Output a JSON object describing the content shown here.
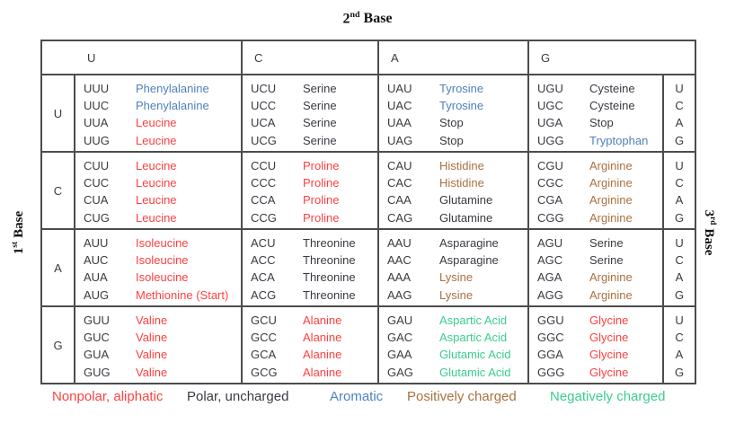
{
  "title": {
    "number": "2",
    "sup": "nd",
    "word": "Base"
  },
  "axis_labels": {
    "first_base": {
      "number": "1",
      "sup": "st",
      "word": "Base"
    },
    "third_base": {
      "number": "3",
      "sup": "rd",
      "word": "Base"
    }
  },
  "colors": {
    "nonpolar": "#ff4040",
    "polar": "#3a3a42",
    "aromatic": "#4f81bd",
    "positive": "#a9713f",
    "negative": "#3bcd8e",
    "border": "#4c4c4c"
  },
  "table": {
    "column_headers": [
      "U",
      "C",
      "A",
      "G"
    ],
    "rows": [
      {
        "label": "U",
        "third_base": [
          "U",
          "C",
          "A",
          "G"
        ],
        "cells": [
          [
            {
              "codon": "UUU",
              "acid": "Phenylalanine",
              "category": "aromatic"
            },
            {
              "codon": "UUC",
              "acid": "Phenylalanine",
              "category": "aromatic"
            },
            {
              "codon": "UUA",
              "acid": "Leucine",
              "category": "nonpolar"
            },
            {
              "codon": "UUG",
              "acid": "Leucine",
              "category": "nonpolar"
            }
          ],
          [
            {
              "codon": "UCU",
              "acid": "Serine",
              "category": "polar"
            },
            {
              "codon": "UCC",
              "acid": "Serine",
              "category": "polar"
            },
            {
              "codon": "UCA",
              "acid": "Serine",
              "category": "polar"
            },
            {
              "codon": "UCG",
              "acid": "Serine",
              "category": "polar"
            }
          ],
          [
            {
              "codon": "UAU",
              "acid": "Tyrosine",
              "category": "aromatic"
            },
            {
              "codon": "UAC",
              "acid": "Tyrosine",
              "category": "aromatic"
            },
            {
              "codon": "UAA",
              "acid": "Stop",
              "category": "polar"
            },
            {
              "codon": "UAG",
              "acid": "Stop",
              "category": "polar"
            }
          ],
          [
            {
              "codon": "UGU",
              "acid": "Cysteine",
              "category": "polar"
            },
            {
              "codon": "UGC",
              "acid": "Cysteine",
              "category": "polar"
            },
            {
              "codon": "UGA",
              "acid": "Stop",
              "category": "polar"
            },
            {
              "codon": "UGG",
              "acid": "Tryptophan",
              "category": "aromatic"
            }
          ]
        ]
      },
      {
        "label": "C",
        "third_base": [
          "U",
          "C",
          "A",
          "G"
        ],
        "cells": [
          [
            {
              "codon": "CUU",
              "acid": "Leucine",
              "category": "nonpolar"
            },
            {
              "codon": "CUC",
              "acid": "Leucine",
              "category": "nonpolar"
            },
            {
              "codon": "CUA",
              "acid": "Leucine",
              "category": "nonpolar"
            },
            {
              "codon": "CUG",
              "acid": "Leucine",
              "category": "nonpolar"
            }
          ],
          [
            {
              "codon": "CCU",
              "acid": "Proline",
              "category": "nonpolar"
            },
            {
              "codon": "CCC",
              "acid": "Proline",
              "category": "nonpolar"
            },
            {
              "codon": "CCA",
              "acid": "Proline",
              "category": "nonpolar"
            },
            {
              "codon": "CCG",
              "acid": "Proline",
              "category": "nonpolar"
            }
          ],
          [
            {
              "codon": "CAU",
              "acid": "Histidine",
              "category": "positive"
            },
            {
              "codon": "CAC",
              "acid": "Histidine",
              "category": "positive"
            },
            {
              "codon": "CAA",
              "acid": "Glutamine",
              "category": "polar"
            },
            {
              "codon": "CAG",
              "acid": "Glutamine",
              "category": "polar"
            }
          ],
          [
            {
              "codon": "CGU",
              "acid": "Arginine",
              "category": "positive"
            },
            {
              "codon": "CGC",
              "acid": "Arginine",
              "category": "positive"
            },
            {
              "codon": "CGA",
              "acid": "Arginine",
              "category": "positive"
            },
            {
              "codon": "CGG",
              "acid": "Arginine",
              "category": "positive"
            }
          ]
        ]
      },
      {
        "label": "A",
        "third_base": [
          "U",
          "C",
          "A",
          "G"
        ],
        "cells": [
          [
            {
              "codon": "AUU",
              "acid": "Isoleucine",
              "category": "nonpolar"
            },
            {
              "codon": "AUC",
              "acid": "Isoleucine",
              "category": "nonpolar"
            },
            {
              "codon": "AUA",
              "acid": "Isoleucine",
              "category": "nonpolar"
            },
            {
              "codon": "AUG",
              "acid": "Methionine (Start)",
              "category": "nonpolar"
            }
          ],
          [
            {
              "codon": "ACU",
              "acid": "Threonine",
              "category": "polar"
            },
            {
              "codon": "ACC",
              "acid": "Threonine",
              "category": "polar"
            },
            {
              "codon": "ACA",
              "acid": "Threonine",
              "category": "polar"
            },
            {
              "codon": "ACG",
              "acid": "Threonine",
              "category": "polar"
            }
          ],
          [
            {
              "codon": "AAU",
              "acid": "Asparagine",
              "category": "polar"
            },
            {
              "codon": "AAC",
              "acid": "Asparagine",
              "category": "polar"
            },
            {
              "codon": "AAA",
              "acid": "Lysine",
              "category": "positive"
            },
            {
              "codon": "AAG",
              "acid": "Lysine",
              "category": "positive"
            }
          ],
          [
            {
              "codon": "AGU",
              "acid": "Serine",
              "category": "polar"
            },
            {
              "codon": "AGC",
              "acid": "Serine",
              "category": "polar"
            },
            {
              "codon": "AGA",
              "acid": "Arginine",
              "category": "positive"
            },
            {
              "codon": "AGG",
              "acid": "Arginine",
              "category": "positive"
            }
          ]
        ]
      },
      {
        "label": "G",
        "third_base": [
          "U",
          "C",
          "A",
          "G"
        ],
        "cells": [
          [
            {
              "codon": "GUU",
              "acid": "Valine",
              "category": "nonpolar"
            },
            {
              "codon": "GUC",
              "acid": "Valine",
              "category": "nonpolar"
            },
            {
              "codon": "GUA",
              "acid": "Valine",
              "category": "nonpolar"
            },
            {
              "codon": "GUG",
              "acid": "Valine",
              "category": "nonpolar"
            }
          ],
          [
            {
              "codon": "GCU",
              "acid": "Alanine",
              "category": "nonpolar"
            },
            {
              "codon": "GCC",
              "acid": "Alanine",
              "category": "nonpolar"
            },
            {
              "codon": "GCA",
              "acid": "Alanine",
              "category": "nonpolar"
            },
            {
              "codon": "GCG",
              "acid": "Alanine",
              "category": "nonpolar"
            }
          ],
          [
            {
              "codon": "GAU",
              "acid": "Aspartic Acid",
              "category": "negative"
            },
            {
              "codon": "GAC",
              "acid": "Aspartic Acid",
              "category": "negative"
            },
            {
              "codon": "GAA",
              "acid": "Glutamic Acid",
              "category": "negative"
            },
            {
              "codon": "GAG",
              "acid": "Glutamic Acid",
              "category": "negative"
            }
          ],
          [
            {
              "codon": "GGU",
              "acid": "Glycine",
              "category": "nonpolar"
            },
            {
              "codon": "GGC",
              "acid": "Glycine",
              "category": "nonpolar"
            },
            {
              "codon": "GGA",
              "acid": "Glycine",
              "category": "nonpolar"
            },
            {
              "codon": "GGG",
              "acid": "Glycine",
              "category": "nonpolar"
            }
          ]
        ]
      }
    ]
  },
  "legend": [
    {
      "label": "Nonpolar, aliphatic",
      "category": "nonpolar"
    },
    {
      "label": "Polar, uncharged",
      "category": "polar"
    },
    {
      "label": "Aromatic",
      "category": "aromatic"
    },
    {
      "label": "Positively charged",
      "category": "positive"
    },
    {
      "label": "Negatively charged",
      "category": "negative"
    }
  ]
}
